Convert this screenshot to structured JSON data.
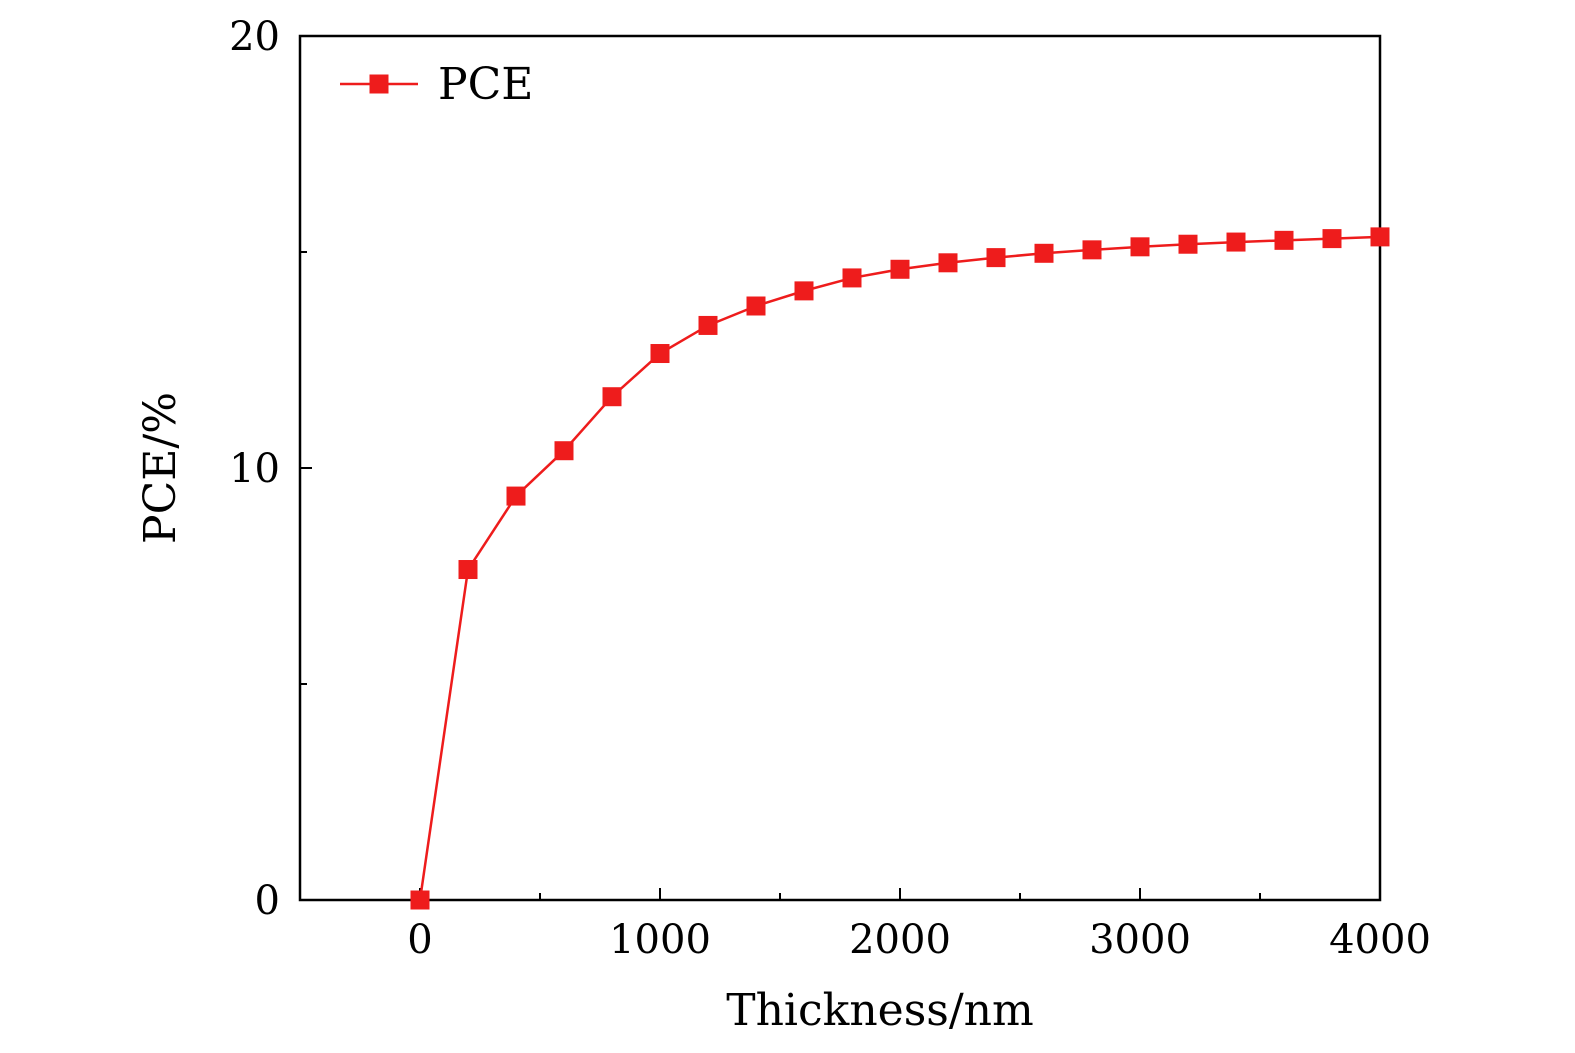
{
  "chart_data": {
    "type": "line",
    "xlabel": "Thickness/nm",
    "ylabel": "PCE/%",
    "xlim": [
      -500,
      4000
    ],
    "ylim": [
      0,
      20
    ],
    "x_ticks": [
      0,
      1000,
      2000,
      3000,
      4000
    ],
    "x_tick_labels": [
      "0",
      "1000",
      "2000",
      "3000",
      "4000"
    ],
    "x_minor_ticks": [
      500,
      1500,
      2500,
      3500
    ],
    "y_ticks": [
      0,
      10,
      20
    ],
    "y_tick_labels": [
      "0",
      "10",
      "20"
    ],
    "y_minor_ticks": [
      5,
      15
    ],
    "grid": false,
    "legend": {
      "position": "top-left"
    },
    "series": [
      {
        "name": "PCE",
        "color": "#ee1c1c",
        "marker": "square",
        "x": [
          0,
          200,
          400,
          600,
          800,
          1000,
          1200,
          1400,
          1600,
          1800,
          2000,
          2200,
          2400,
          2600,
          2800,
          3000,
          3200,
          3400,
          3600,
          3800,
          4000
        ],
        "values": [
          0,
          7.65,
          9.35,
          10.4,
          11.65,
          12.65,
          13.3,
          13.75,
          14.1,
          14.4,
          14.6,
          14.75,
          14.87,
          14.97,
          15.05,
          15.12,
          15.18,
          15.23,
          15.27,
          15.31,
          15.35
        ]
      }
    ]
  }
}
